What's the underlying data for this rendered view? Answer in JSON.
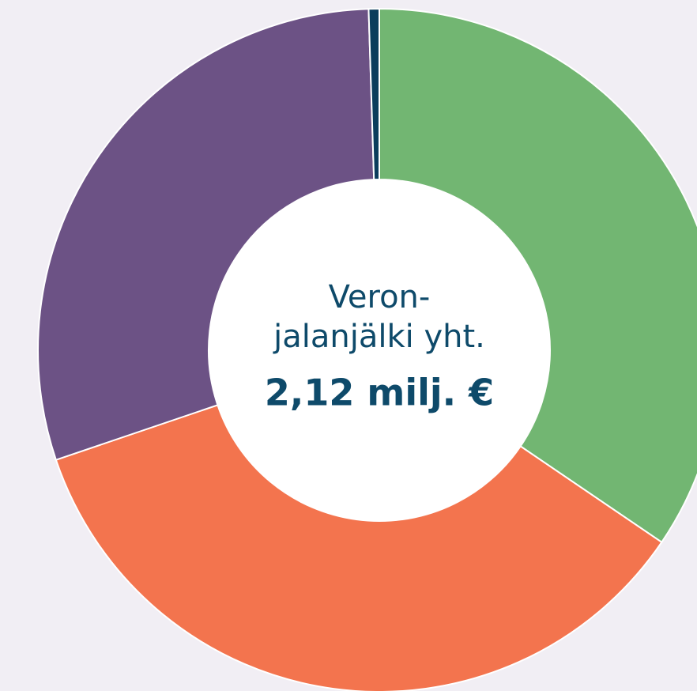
{
  "chart_data": {
    "type": "donut",
    "center_lines": [
      "Veron-",
      "jalanjälki yht."
    ],
    "center_value": "2,12 milj. €",
    "categories": [
      null,
      null,
      null,
      null
    ],
    "values": [
      34.5,
      35.3,
      29.7,
      0.5
    ],
    "colors": [
      "#72b672",
      "#f3744e",
      "#6c5285",
      "#0b3d5c"
    ]
  }
}
